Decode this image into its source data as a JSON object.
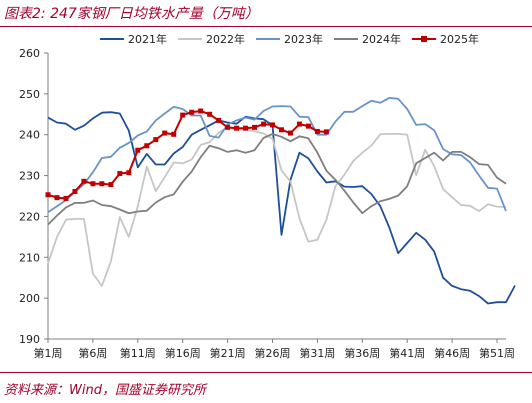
{
  "header": {
    "title": "图表2:  247家钢厂日均铁水产量（万吨）"
  },
  "footer": {
    "source": "资料来源：Wind，国盛证券研究所"
  },
  "chart_data": {
    "type": "line",
    "title": "",
    "xlabel": "",
    "ylabel": "",
    "ylim": [
      190,
      260
    ],
    "yticks": [
      190,
      200,
      210,
      220,
      230,
      240,
      250,
      260
    ],
    "xlim": [
      1,
      52
    ],
    "xtick_weeks": [
      1,
      6,
      11,
      16,
      21,
      26,
      31,
      36,
      41,
      46,
      51
    ],
    "xtick_labels": [
      "第1周",
      "第6周",
      "第11周",
      "第16周",
      "第21周",
      "第26周",
      "第31周",
      "第36周",
      "第41周",
      "第46周",
      "第51周"
    ],
    "grid": false,
    "legend_position": "top",
    "series": [
      {
        "name": "2021年",
        "color": "#1f4e9c",
        "marker": false,
        "values": [
          244.2,
          243,
          242.7,
          241.2,
          242.2,
          244,
          245.4,
          245.5,
          245.2,
          241,
          232,
          235.3,
          232.7,
          232.7,
          235.4,
          237,
          240,
          241.2,
          242.3,
          243.5,
          243,
          242.7,
          244.4,
          244,
          243.8,
          242.3,
          215.5,
          229,
          235.6,
          234.2,
          231,
          228.3,
          228.6,
          227.3,
          227.2,
          227.4,
          225.5,
          222.5,
          217.3,
          211,
          213.5,
          216,
          214.3,
          211.4,
          205,
          203,
          202.2,
          201.8,
          200.5,
          198.7,
          199,
          199,
          203.1
        ]
      },
      {
        "name": "2022年",
        "color": "#c6c6c6",
        "marker": false,
        "values": [
          208.5,
          215,
          219.2,
          219.4,
          219.4,
          206,
          203,
          209,
          219.8,
          215,
          222.5,
          232.2,
          226.2,
          229.6,
          233.2,
          233,
          233.9,
          237.5,
          238.2,
          240.5,
          241.8,
          241.2,
          241.3,
          240.8,
          240.3,
          239,
          231.3,
          228.5,
          219.5,
          213.8,
          214.3,
          219.2,
          227.4,
          230.2,
          233.6,
          235.6,
          237.3,
          240.1,
          240.2,
          240.2,
          240,
          230.1,
          236.3,
          232.3,
          226.7,
          224.7,
          222.8,
          222.6,
          221.3,
          223,
          222.4,
          222.3
        ]
      },
      {
        "name": "2023年",
        "color": "#6894cc",
        "marker": false,
        "values": [
          221,
          222.5,
          224,
          226,
          227.9,
          230.8,
          234.3,
          234.6,
          236.8,
          238,
          239.8,
          240.8,
          243.5,
          245.2,
          246.8,
          246.3,
          244.7,
          244.7,
          239.7,
          239.3,
          242.5,
          243.5,
          244.2,
          243.7,
          245.8,
          246.9,
          247,
          246.9,
          244.4,
          244.3,
          240,
          240,
          243.2,
          245.6,
          245.6,
          247,
          248.3,
          247.8,
          249,
          248.8,
          246.3,
          242.4,
          242.6,
          241.1,
          236.5,
          235.2,
          235,
          233.2,
          230,
          227,
          226.8,
          221.3
        ]
      },
      {
        "name": "2024年",
        "color": "#7f7f7f",
        "marker": false,
        "values": [
          218,
          220.2,
          222.2,
          223.3,
          223.3,
          223.9,
          222.8,
          222.5,
          221.7,
          220.8,
          221.2,
          221.4,
          223.4,
          224.7,
          225.4,
          228.5,
          231,
          234.5,
          237.3,
          236.7,
          235.8,
          236.2,
          235.6,
          236.2,
          239.2,
          240.2,
          239.5,
          238.4,
          239.6,
          239.1,
          235.6,
          231.2,
          229,
          226.3,
          223.4,
          220.8,
          222.5,
          223.7,
          224.3,
          225.1,
          227.4,
          233,
          234.3,
          235.6,
          233.7,
          235.8,
          235.8,
          234.5,
          232.8,
          232.6,
          229.5,
          228
        ]
      },
      {
        "name": "2025年",
        "color": "#c00000",
        "marker": true,
        "values": [
          225.3,
          224.6,
          224.4,
          226.1,
          228.6,
          228,
          228,
          227.8,
          230.5,
          230.7,
          236.2,
          237.3,
          238.8,
          240.4,
          240.1,
          244.8,
          245.5,
          245.8,
          245,
          243.5,
          241.8,
          241.6,
          241.6,
          241.8,
          242.6,
          242.4,
          241.2,
          240.4,
          242.6,
          242.1,
          240.8,
          240.7
        ]
      }
    ]
  }
}
